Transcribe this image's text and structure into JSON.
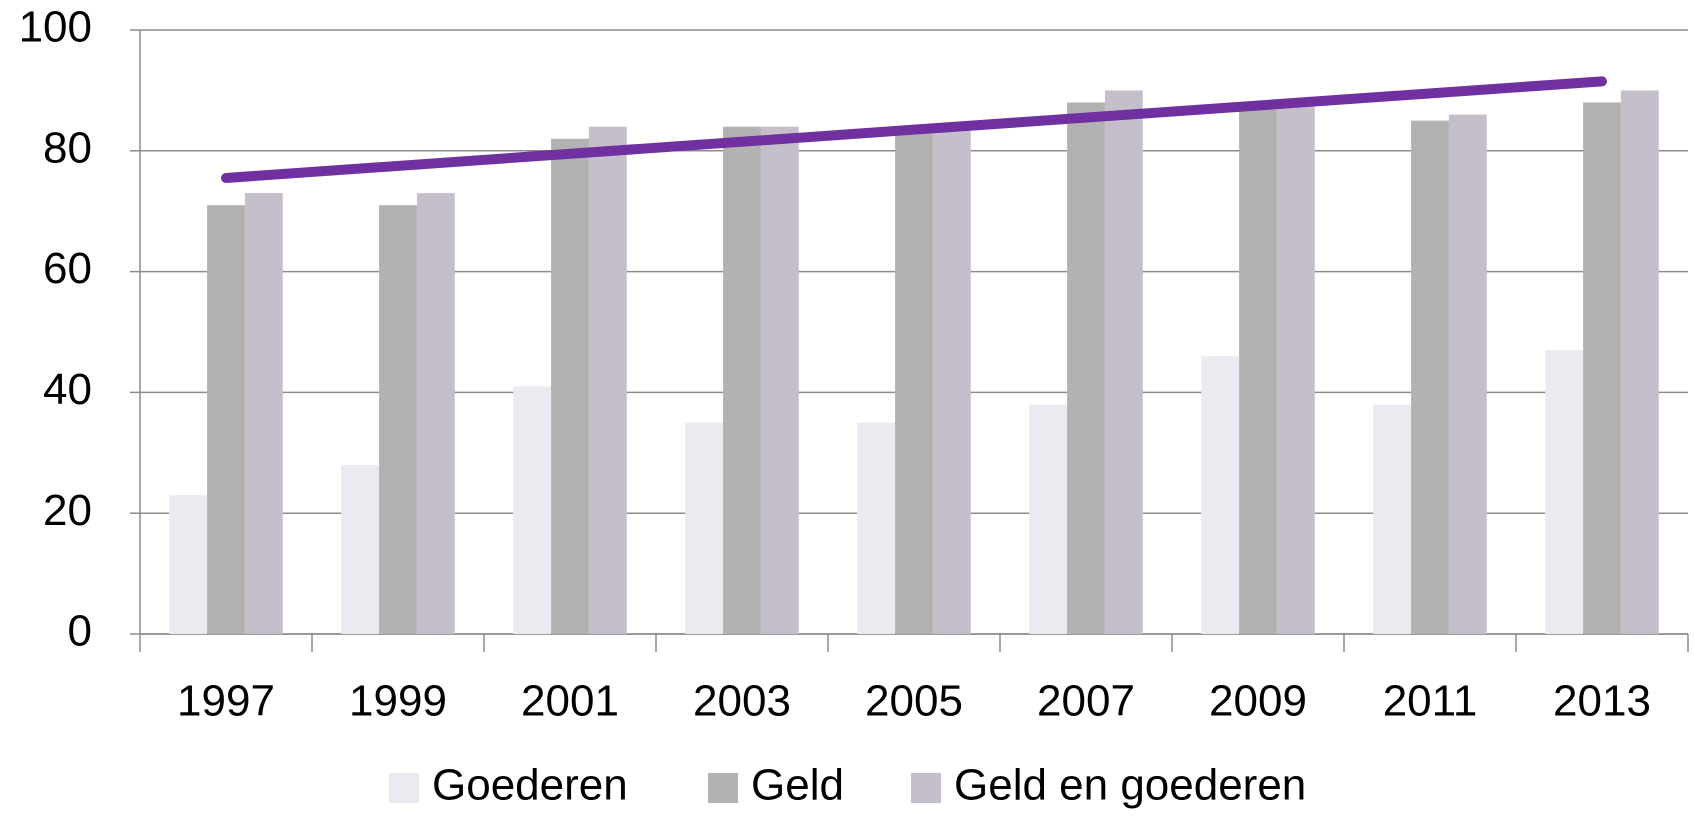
{
  "chart_data": {
    "type": "bar",
    "categories": [
      "1997",
      "1999",
      "2001",
      "2003",
      "2005",
      "2007",
      "2009",
      "2011",
      "2013"
    ],
    "series": [
      {
        "name": "Goederen",
        "color": "#ece9f1",
        "values": [
          23,
          28,
          41,
          35,
          35,
          38,
          46,
          38,
          47
        ]
      },
      {
        "name": "Geld",
        "color": "#b2b2b2",
        "values": [
          71,
          71,
          82,
          84,
          84,
          88,
          88,
          85,
          88
        ]
      },
      {
        "name": "Geld en goederen",
        "color": "#c5bfcc",
        "values": [
          73,
          73,
          84,
          84,
          84,
          90,
          88,
          86,
          90
        ]
      }
    ],
    "trendline": {
      "color": "#7030a0",
      "values": [
        75.5,
        91.5
      ]
    },
    "ylim": [
      0,
      100
    ],
    "yticks": [
      0,
      20,
      40,
      60,
      80,
      100
    ],
    "grid": true,
    "legend": "bottom"
  }
}
